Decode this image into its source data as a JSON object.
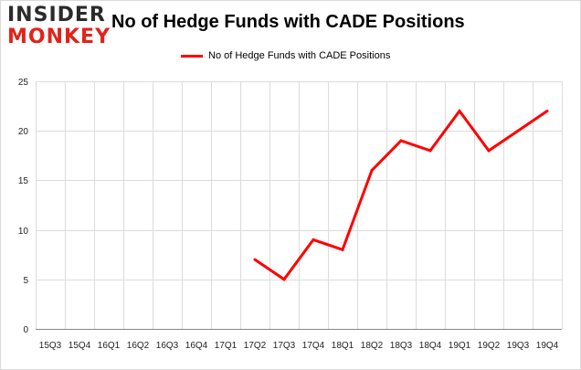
{
  "logo": {
    "line1": "INSIDER",
    "line2": "MONKEY"
  },
  "chart_data": {
    "type": "line",
    "title": "No of Hedge Funds with CADE Positions",
    "xlabel": "",
    "ylabel": "",
    "ylim": [
      0,
      25
    ],
    "yticks": [
      "0",
      "5",
      "10",
      "15",
      "20",
      "25"
    ],
    "categories": [
      "15Q3",
      "15Q4",
      "16Q1",
      "16Q2",
      "16Q3",
      "16Q4",
      "17Q1",
      "17Q2",
      "17Q3",
      "17Q4",
      "18Q1",
      "18Q2",
      "18Q3",
      "18Q4",
      "19Q1",
      "19Q2",
      "19Q3",
      "19Q4"
    ],
    "series": [
      {
        "name": "No of Hedge Funds with CADE Positions",
        "color": "#ff0000",
        "values": [
          null,
          null,
          null,
          null,
          null,
          null,
          null,
          7,
          5,
          9,
          8,
          16,
          19,
          18,
          22,
          18,
          20,
          22
        ]
      }
    ],
    "legend": "top-center",
    "grid": true
  }
}
